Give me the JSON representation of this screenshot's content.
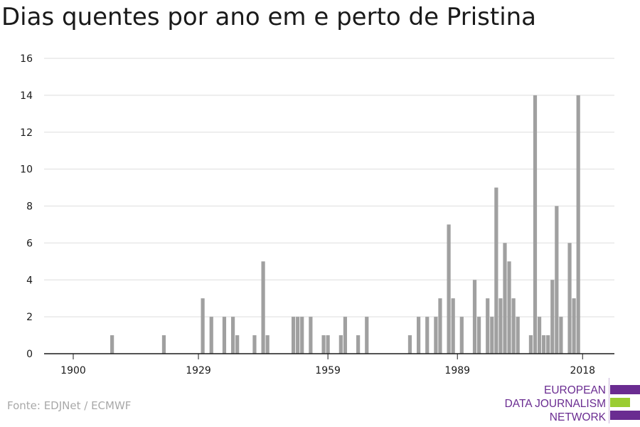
{
  "title": "Dias quentes por ano em e perto de Pristina",
  "source": "Fonte: EDJNet / ECMWF",
  "logo": {
    "lines": [
      "EUROPEAN",
      "DATA JOURNALISM",
      "NETWORK"
    ],
    "colors": [
      "#6a2c91",
      "#9acd32",
      "#6a2c91"
    ]
  },
  "colors": {
    "bar": "#a0a0a0",
    "grid": "#dedede",
    "axis": "#1a1a1a",
    "text": "#1a1a1a"
  },
  "chart_data": {
    "type": "bar",
    "xlim": [
      1900,
      2018
    ],
    "ylim": [
      0,
      16
    ],
    "xticks": [
      1900,
      1929,
      1959,
      1989,
      2018
    ],
    "yticks": [
      0,
      2,
      4,
      6,
      8,
      10,
      12,
      14,
      16
    ],
    "grid": true,
    "xlabel": "",
    "ylabel": "",
    "x": [
      1900,
      1901,
      1902,
      1903,
      1904,
      1905,
      1906,
      1907,
      1908,
      1909,
      1910,
      1911,
      1912,
      1913,
      1914,
      1915,
      1916,
      1917,
      1918,
      1919,
      1920,
      1921,
      1922,
      1923,
      1924,
      1925,
      1926,
      1927,
      1928,
      1929,
      1930,
      1931,
      1932,
      1933,
      1934,
      1935,
      1936,
      1937,
      1938,
      1939,
      1940,
      1941,
      1942,
      1943,
      1944,
      1945,
      1946,
      1947,
      1948,
      1949,
      1950,
      1951,
      1952,
      1953,
      1954,
      1955,
      1956,
      1957,
      1958,
      1959,
      1960,
      1961,
      1962,
      1963,
      1964,
      1965,
      1966,
      1967,
      1968,
      1969,
      1970,
      1971,
      1972,
      1973,
      1974,
      1975,
      1976,
      1977,
      1978,
      1979,
      1980,
      1981,
      1982,
      1983,
      1984,
      1985,
      1986,
      1987,
      1988,
      1989,
      1990,
      1991,
      1992,
      1993,
      1994,
      1995,
      1996,
      1997,
      1998,
      1999,
      2000,
      2001,
      2002,
      2003,
      2004,
      2005,
      2006,
      2007,
      2008,
      2009,
      2010,
      2011,
      2012,
      2013,
      2014,
      2015,
      2016,
      2017,
      2018
    ],
    "values": [
      0,
      0,
      0,
      0,
      0,
      0,
      0,
      0,
      0,
      1,
      0,
      0,
      0,
      0,
      0,
      0,
      0,
      0,
      0,
      0,
      0,
      1,
      0,
      0,
      0,
      0,
      0,
      0,
      0,
      0,
      3,
      0,
      2,
      0,
      0,
      2,
      0,
      2,
      1,
      0,
      0,
      0,
      1,
      0,
      5,
      1,
      0,
      0,
      0,
      0,
      0,
      2,
      2,
      2,
      0,
      2,
      0,
      0,
      1,
      1,
      0,
      0,
      1,
      2,
      0,
      0,
      1,
      0,
      2,
      0,
      0,
      0,
      0,
      0,
      0,
      0,
      0,
      0,
      1,
      0,
      2,
      0,
      2,
      0,
      2,
      3,
      0,
      7,
      3,
      0,
      2,
      0,
      0,
      4,
      2,
      0,
      3,
      2,
      9,
      3,
      6,
      5,
      3,
      2,
      0,
      0,
      1,
      14,
      2,
      1,
      1,
      4,
      8,
      2,
      0,
      6,
      3,
      14,
      0
    ]
  }
}
